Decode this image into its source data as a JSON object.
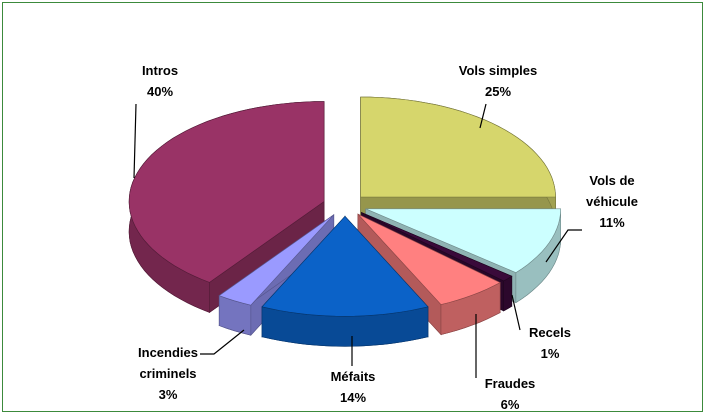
{
  "chart_data": {
    "type": "pie",
    "categories": [
      "Vols simples",
      "Vols de véhicule",
      "Recels",
      "Fraudes",
      "Méfaits",
      "Incendies criminels",
      "Intros"
    ],
    "values": [
      25,
      11,
      1,
      6,
      14,
      3,
      40
    ],
    "value_labels": [
      "25%",
      "11%",
      "1%",
      "6%",
      "14%",
      "3%",
      "40%"
    ],
    "colors": [
      "#d6d66c",
      "#ccffff",
      "#3a0a3a",
      "#ff8080",
      "#0b62c8",
      "#9a9aff",
      "#993366"
    ]
  }
}
